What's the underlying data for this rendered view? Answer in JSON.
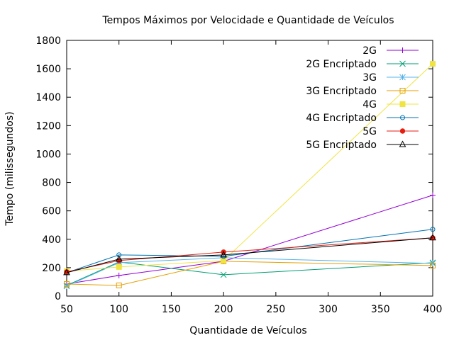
{
  "chart_data": {
    "type": "line",
    "title": "Tempos Máximos por Velocidade e Quantidade de Veículos",
    "xlabel": "Quantidade de Veículos",
    "ylabel": "Tempo (milissegundos)",
    "xlim": [
      50,
      400
    ],
    "ylim": [
      0,
      1800
    ],
    "xticks": [
      50,
      100,
      150,
      200,
      250,
      300,
      350,
      400
    ],
    "yticks": [
      0,
      200,
      400,
      600,
      800,
      1000,
      1200,
      1400,
      1600,
      1800
    ],
    "grid": false,
    "legend_position": "top-right",
    "x": [
      50,
      100,
      200,
      400
    ],
    "series": [
      {
        "name": "2G",
        "color": "#9400d3",
        "marker": "plus",
        "values": [
          85,
          145,
          245,
          710
        ]
      },
      {
        "name": "2G Encriptado",
        "color": "#009e73",
        "marker": "cross",
        "values": [
          75,
          240,
          150,
          235
        ]
      },
      {
        "name": "3G",
        "color": "#56b4e9",
        "marker": "star",
        "values": [
          70,
          235,
          270,
          230
        ]
      },
      {
        "name": "3G Encriptado",
        "color": "#e69f00",
        "marker": "square-open",
        "values": [
          85,
          75,
          245,
          215
        ]
      },
      {
        "name": "4G",
        "color": "#f0e442",
        "marker": "square-filled",
        "values": [
          175,
          205,
          250,
          1635
        ]
      },
      {
        "name": "4G Encriptado",
        "color": "#0072b2",
        "marker": "circle-open",
        "values": [
          165,
          290,
          280,
          470
        ]
      },
      {
        "name": "5G",
        "color": "#e51e10",
        "marker": "circle-filled",
        "values": [
          170,
          250,
          310,
          410
        ]
      },
      {
        "name": "5G Encriptado",
        "color": "#000000",
        "marker": "triangle-open",
        "values": [
          165,
          260,
          290,
          410
        ]
      }
    ]
  }
}
